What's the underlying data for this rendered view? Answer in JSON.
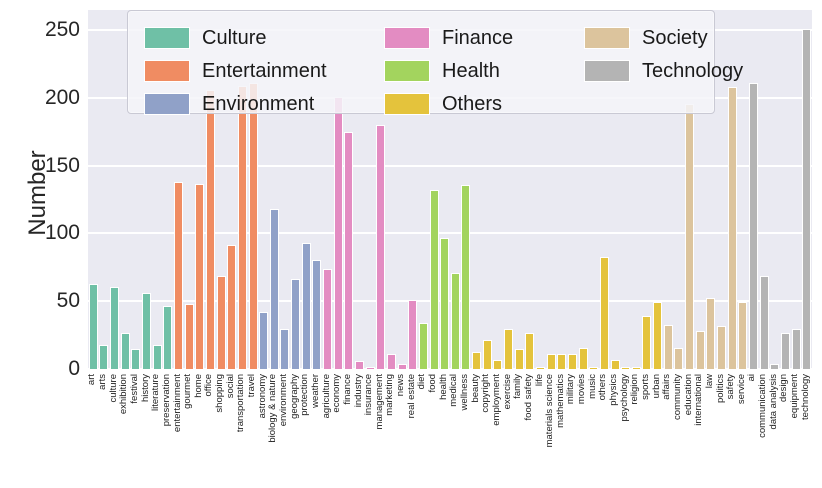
{
  "chart_data": {
    "type": "bar",
    "title": "",
    "xlabel": "",
    "ylabel": "Number",
    "ylim": [
      0,
      264
    ],
    "yticks": [
      0,
      50,
      100,
      150,
      200,
      250
    ],
    "grid": true,
    "legend_position": "upper center, 3 columns",
    "legend_columns": [
      [
        "Culture",
        "Entertainment",
        "Environment"
      ],
      [
        "Finance",
        "Health",
        "Others"
      ],
      [
        "Society",
        "Technology"
      ]
    ],
    "groups": [
      {
        "name": "Culture",
        "color": "#6fc0a6",
        "categories": [
          "art",
          "arts",
          "culture",
          "exhibition",
          "festival",
          "history",
          "literature",
          "preservation"
        ],
        "values": [
          62,
          17,
          60,
          26,
          14,
          55,
          17,
          46
        ]
      },
      {
        "name": "Entertainment",
        "color": "#f08c62",
        "categories": [
          "entertainment",
          "gourmet",
          "home",
          "office",
          "shopping",
          "social",
          "transportation",
          "travel"
        ],
        "values": [
          137,
          47,
          136,
          205,
          68,
          91,
          208,
          210
        ]
      },
      {
        "name": "Environment",
        "color": "#90a1c8",
        "categories": [
          "astronomy",
          "biology & nature",
          "environment",
          "geography",
          "protection",
          "weather"
        ],
        "values": [
          41,
          117,
          29,
          66,
          92,
          80
        ]
      },
      {
        "name": "Finance",
        "color": "#e38cc2",
        "categories": [
          "agriculture",
          "economy",
          "finance",
          "industry",
          "insurance",
          "management",
          "marketing",
          "news",
          "real estate"
        ],
        "values": [
          73,
          200,
          174,
          5,
          1,
          179,
          10,
          3,
          50
        ]
      },
      {
        "name": "Health",
        "color": "#a3d45e",
        "categories": [
          "diet",
          "food",
          "health",
          "medical",
          "wellness"
        ],
        "values": [
          33,
          131,
          96,
          70,
          135
        ]
      },
      {
        "name": "Others",
        "color": "#e4c33c",
        "categories": [
          "beauty",
          "copyright",
          "employment",
          "exercise",
          "family",
          "food safety",
          "life",
          "materials science",
          "mathematics",
          "military",
          "movies",
          "music",
          "others",
          "physics",
          "psychology",
          "religion",
          "sports",
          "urban"
        ],
        "values": [
          12,
          21,
          6,
          29,
          14,
          26,
          1,
          10,
          10,
          10,
          15,
          1,
          82,
          6,
          1,
          1,
          38,
          49
        ]
      },
      {
        "name": "Society",
        "color": "#dcc49d",
        "categories": [
          "affairs",
          "community",
          "education",
          "international",
          "law",
          "politics",
          "safety",
          "service"
        ],
        "values": [
          32,
          15,
          195,
          27,
          52,
          31,
          207,
          49
        ]
      },
      {
        "name": "Technology",
        "color": "#b4b4b4",
        "categories": [
          "ai",
          "communication",
          "data analysis",
          "design",
          "equipment",
          "technology"
        ],
        "values": [
          210,
          68,
          3,
          26,
          29,
          250
        ]
      }
    ]
  }
}
